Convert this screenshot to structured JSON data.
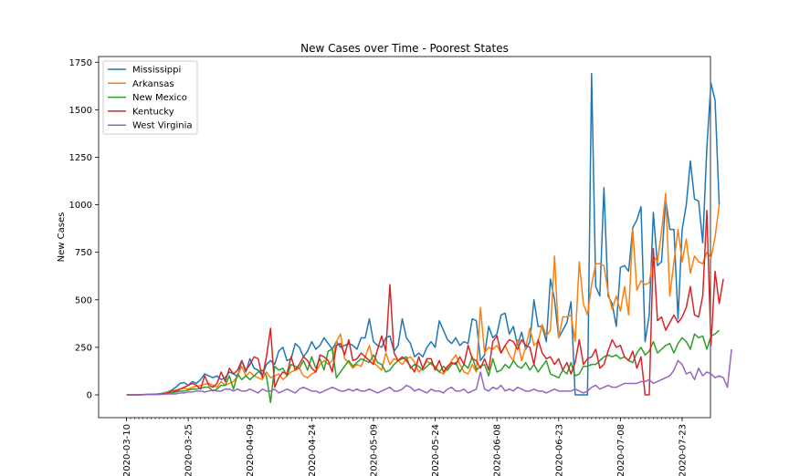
{
  "chart_data": {
    "type": "line",
    "title": "New Cases over Time - Poorest States",
    "xlabel": "",
    "ylabel": "New Cases",
    "start_date": "2020-03-10",
    "end_date": "2020-07-23",
    "xtick_labels": [
      "2020-03-10",
      "2020-03-25",
      "2020-04-09",
      "2020-04-24",
      "2020-05-09",
      "2020-05-24",
      "2020-06-08",
      "2020-06-23",
      "2020-07-08",
      "2020-07-23"
    ],
    "ylim": [
      -120,
      1780
    ],
    "yticks": [
      0,
      250,
      500,
      750,
      1000,
      1250,
      1500,
      1750
    ],
    "ytick_labels": [
      "0",
      "250",
      "500",
      "750",
      "1000",
      "1250",
      "1500",
      "1750"
    ],
    "grid": false,
    "legend_position": "upper left",
    "series": [
      {
        "name": "Mississippi",
        "color": "#1f77b4",
        "values": [
          0,
          0,
          0,
          1,
          1,
          2,
          3,
          2,
          5,
          10,
          15,
          25,
          40,
          60,
          65,
          50,
          70,
          60,
          80,
          110,
          100,
          90,
          100,
          80,
          90,
          120,
          110,
          95,
          180,
          120,
          190,
          140,
          130,
          100,
          160,
          180,
          160,
          230,
          250,
          180,
          190,
          270,
          250,
          200,
          230,
          280,
          240,
          260,
          300,
          270,
          240,
          280,
          250,
          260,
          270,
          260,
          240,
          300,
          300,
          400,
          280,
          260,
          250,
          300,
          310,
          230,
          260,
          400,
          300,
          270,
          200,
          220,
          200,
          250,
          280,
          250,
          390,
          340,
          290,
          270,
          300,
          260,
          280,
          270,
          400,
          390,
          180,
          210,
          360,
          300,
          320,
          420,
          430,
          320,
          360,
          260,
          330,
          240,
          280,
          500,
          360,
          360,
          280,
          610,
          500,
          300,
          340,
          380,
          490,
          0,
          0,
          0,
          0,
          1690,
          570,
          520,
          1090,
          520,
          480,
          360,
          670,
          680,
          650,
          880,
          920,
          990,
          280,
          420,
          960,
          680,
          700,
          1030,
          870,
          870,
          400,
          870,
          1000,
          1230,
          1030,
          1020,
          800,
          1300,
          1640,
          1550,
          1000
        ]
      },
      {
        "name": "Arkansas",
        "color": "#ff7f0e",
        "values": [
          0,
          0,
          0,
          0,
          2,
          3,
          3,
          4,
          5,
          8,
          15,
          20,
          25,
          30,
          35,
          30,
          40,
          45,
          50,
          55,
          60,
          50,
          40,
          70,
          50,
          60,
          70,
          100,
          150,
          100,
          120,
          100,
          90,
          80,
          120,
          90,
          100,
          110,
          80,
          100,
          120,
          130,
          140,
          100,
          90,
          110,
          120,
          160,
          180,
          160,
          180,
          280,
          320,
          190,
          170,
          140,
          160,
          150,
          200,
          260,
          170,
          150,
          130,
          220,
          160,
          190,
          180,
          160,
          190,
          200,
          170,
          120,
          140,
          180,
          160,
          150,
          120,
          110,
          140,
          180,
          210,
          160,
          120,
          110,
          160,
          120,
          460,
          220,
          250,
          240,
          260,
          220,
          260,
          210,
          180,
          290,
          180,
          250,
          350,
          260,
          280,
          370,
          310,
          340,
          730,
          300,
          410,
          410,
          420,
          280,
          700,
          480,
          420,
          580,
          690,
          690,
          680,
          540,
          450,
          520,
          440,
          570,
          420,
          870,
          550,
          600,
          580,
          590,
          730,
          700,
          860,
          1060,
          520,
          700,
          870,
          700,
          820,
          640,
          730,
          700,
          690,
          750,
          720,
          830,
          1000
        ]
      },
      {
        "name": "New Mexico",
        "color": "#2ca02c",
        "values": [
          0,
          0,
          0,
          0,
          1,
          2,
          2,
          3,
          5,
          5,
          10,
          10,
          15,
          20,
          20,
          25,
          30,
          30,
          35,
          40,
          40,
          20,
          30,
          50,
          50,
          100,
          30,
          110,
          80,
          100,
          80,
          100,
          120,
          130,
          100,
          -40,
          150,
          130,
          140,
          100,
          160,
          150,
          140,
          180,
          130,
          200,
          140,
          190,
          130,
          230,
          240,
          90,
          120,
          150,
          180,
          150,
          170,
          190,
          180,
          170,
          210,
          170,
          160,
          120,
          130,
          160,
          180,
          190,
          200,
          140,
          160,
          150,
          130,
          150,
          170,
          140,
          120,
          150,
          130,
          160,
          170,
          120,
          160,
          140,
          200,
          130,
          150,
          160,
          100,
          190,
          120,
          130,
          160,
          140,
          180,
          150,
          140,
          170,
          130,
          160,
          120,
          150,
          180,
          110,
          100,
          90,
          130,
          110,
          170,
          100,
          110,
          150,
          150,
          160,
          160,
          180,
          200,
          210,
          200,
          210,
          190,
          200,
          180,
          170,
          220,
          250,
          210,
          230,
          280,
          220,
          240,
          260,
          270,
          220,
          270,
          300,
          280,
          240,
          320,
          300,
          310,
          240,
          310,
          320,
          340
        ]
      },
      {
        "name": "Kentucky",
        "color": "#d62728",
        "values": [
          0,
          0,
          0,
          0,
          1,
          1,
          2,
          2,
          4,
          5,
          10,
          20,
          20,
          30,
          40,
          50,
          60,
          50,
          30,
          100,
          50,
          40,
          60,
          120,
          70,
          140,
          110,
          130,
          180,
          130,
          160,
          200,
          190,
          90,
          200,
          350,
          40,
          90,
          120,
          110,
          200,
          130,
          160,
          200,
          180,
          140,
          120,
          210,
          200,
          180,
          120,
          260,
          270,
          210,
          290,
          180,
          190,
          220,
          200,
          180,
          160,
          240,
          310,
          230,
          580,
          220,
          180,
          200,
          180,
          150,
          120,
          200,
          140,
          190,
          190,
          130,
          180,
          120,
          150,
          170,
          160,
          200,
          160,
          260,
          190,
          180,
          140,
          190,
          130,
          280,
          310,
          220,
          260,
          290,
          280,
          240,
          290,
          260,
          250,
          160,
          290,
          220,
          190,
          200,
          160,
          190,
          130,
          170,
          110,
          170,
          290,
          160,
          190,
          200,
          240,
          140,
          160,
          230,
          290,
          250,
          260,
          200,
          180,
          230,
          140,
          200,
          0,
          0,
          770,
          390,
          410,
          340,
          380,
          420,
          380,
          410,
          460,
          570,
          420,
          410,
          520,
          970,
          260,
          650,
          480,
          610
        ]
      },
      {
        "name": "West Virginia",
        "color": "#9467bd",
        "values": [
          0,
          0,
          0,
          0,
          0,
          1,
          1,
          2,
          2,
          3,
          5,
          5,
          5,
          10,
          10,
          15,
          15,
          20,
          20,
          15,
          20,
          25,
          20,
          20,
          30,
          30,
          20,
          30,
          20,
          20,
          30,
          20,
          10,
          30,
          20,
          20,
          30,
          10,
          20,
          30,
          20,
          10,
          30,
          40,
          30,
          20,
          20,
          10,
          20,
          30,
          40,
          30,
          20,
          20,
          30,
          20,
          30,
          20,
          20,
          30,
          20,
          10,
          20,
          30,
          40,
          20,
          20,
          30,
          50,
          40,
          20,
          30,
          20,
          10,
          30,
          20,
          20,
          10,
          30,
          40,
          20,
          20,
          30,
          10,
          20,
          30,
          120,
          30,
          20,
          40,
          30,
          50,
          20,
          30,
          20,
          40,
          30,
          20,
          20,
          30,
          20,
          20,
          10,
          20,
          30,
          20,
          20,
          20,
          20,
          30,
          20,
          10,
          20,
          40,
          50,
          30,
          40,
          50,
          40,
          40,
          50,
          60,
          60,
          60,
          60,
          70,
          70,
          80,
          60,
          70,
          80,
          90,
          100,
          130,
          180,
          160,
          110,
          120,
          80,
          140,
          100,
          120,
          110,
          90,
          100,
          90,
          40,
          240
        ]
      }
    ]
  }
}
